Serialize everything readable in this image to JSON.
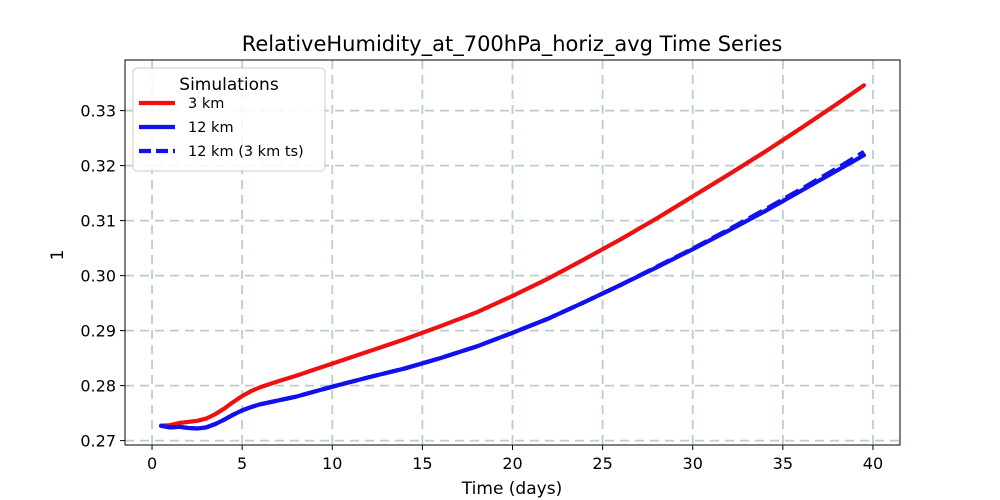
{
  "chart_data": {
    "type": "line",
    "title": "RelativeHumidity_at_700hPa_horiz_avg Time Series",
    "xlabel": "Time (days)",
    "ylabel": "1",
    "xlim": [
      -1.5,
      41.5
    ],
    "ylim": [
      0.2692,
      0.3392
    ],
    "x_ticks": [
      0,
      5,
      10,
      15,
      20,
      25,
      30,
      35,
      40
    ],
    "y_ticks": [
      0.27,
      0.28,
      0.29,
      0.3,
      0.31,
      0.32,
      0.33
    ],
    "x_tick_labels": [
      "0",
      "5",
      "10",
      "15",
      "20",
      "25",
      "30",
      "35",
      "40"
    ],
    "y_tick_labels": [
      "0.27",
      "0.28",
      "0.29",
      "0.30",
      "0.31",
      "0.32",
      "0.33"
    ],
    "grid": true,
    "legend": {
      "title": "Simulations",
      "position": "top-left"
    },
    "x": [
      0.5,
      1,
      1.5,
      2,
      2.5,
      3,
      3.5,
      4,
      4.5,
      5,
      5.5,
      6,
      7,
      8,
      9,
      10,
      12,
      14,
      16,
      18,
      20,
      22,
      24,
      26,
      28,
      30,
      32,
      34,
      36,
      38,
      39.5
    ],
    "series": [
      {
        "name": "3 km",
        "color": "#ee1111",
        "style": "solid",
        "values": [
          0.2727,
          0.2728,
          0.2732,
          0.2734,
          0.2736,
          0.274,
          0.2748,
          0.2758,
          0.277,
          0.2781,
          0.279,
          0.2797,
          0.2808,
          0.2818,
          0.2829,
          0.284,
          0.2862,
          0.2884,
          0.2908,
          0.2933,
          0.2963,
          0.2995,
          0.303,
          0.3066,
          0.3104,
          0.3144,
          0.3184,
          0.3225,
          0.3268,
          0.3312,
          0.3346
        ]
      },
      {
        "name": "12 km",
        "color": "#1111ee",
        "style": "solid",
        "values": [
          0.2727,
          0.2724,
          0.2725,
          0.2723,
          0.2722,
          0.2724,
          0.273,
          0.2738,
          0.2747,
          0.2755,
          0.2761,
          0.2766,
          0.2773,
          0.278,
          0.2789,
          0.2798,
          0.2815,
          0.2831,
          0.285,
          0.2871,
          0.2896,
          0.2922,
          0.2952,
          0.2983,
          0.3015,
          0.3048,
          0.3082,
          0.3117,
          0.3154,
          0.3191,
          0.3219
        ]
      },
      {
        "name": "12 km (3 km ts)",
        "color": "#1111ee",
        "style": "dashed",
        "values": [
          0.2727,
          0.2724,
          0.2725,
          0.2723,
          0.2722,
          0.2724,
          0.273,
          0.2738,
          0.2747,
          0.2755,
          0.2761,
          0.2766,
          0.2773,
          0.278,
          0.2789,
          0.2798,
          0.2815,
          0.2831,
          0.285,
          0.2871,
          0.2896,
          0.2922,
          0.2952,
          0.2983,
          0.3016,
          0.3049,
          0.3084,
          0.312,
          0.3157,
          0.3195,
          0.3225
        ]
      }
    ]
  }
}
